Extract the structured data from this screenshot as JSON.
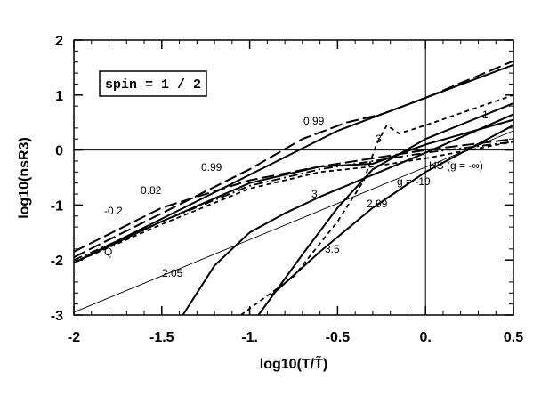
{
  "chart_data": {
    "type": "line",
    "xlabel": "log10(T/T̃)",
    "ylabel": "log10(nsR3)",
    "xlim": [
      -2,
      0.5
    ],
    "ylim": [
      -3,
      2
    ],
    "x_ticks": [
      "-2",
      "-1.5",
      "-1.",
      "-0.5",
      "0.",
      "0.5"
    ],
    "y_ticks": [
      "-3",
      "-2",
      "-1",
      "0",
      "1",
      "2"
    ],
    "box_label": "spin = 1 / 2",
    "reference_lines": {
      "y": 0,
      "x": 0
    },
    "series": [
      {
        "name": "1",
        "style": "solid",
        "x": [
          -2,
          -1.5,
          -1,
          -0.5,
          0,
          0.5
        ],
        "y": [
          -2.05,
          -1.25,
          -0.45,
          0.35,
          0.95,
          1.55
        ]
      },
      {
        "name": "0.99",
        "style": "long-dash",
        "x": [
          -2,
          -1.5,
          -1,
          -0.7,
          -0.45,
          -0.25,
          0,
          0.5
        ],
        "y": [
          -1.95,
          -1.15,
          -0.35,
          0.2,
          0.5,
          0.65,
          0.95,
          1.62
        ]
      },
      {
        "name": "0.82",
        "style": "long-dash",
        "x": [
          -2,
          -1.5,
          -1,
          -0.6,
          -0.3,
          0,
          0.5
        ],
        "y": [
          -1.85,
          -1.05,
          -0.55,
          -0.3,
          -0.15,
          0.0,
          0.2
        ]
      },
      {
        "name": "-0.2",
        "style": "dash-dot",
        "x": [
          -2,
          -1.5,
          -1,
          -0.6,
          -0.3,
          0,
          0.5
        ],
        "y": [
          -2.0,
          -1.3,
          -0.65,
          -0.35,
          -0.2,
          -0.05,
          0.15
        ]
      },
      {
        "name": "HS (g = -∞)",
        "style": "dashed",
        "x": [
          -2,
          -1.5,
          -1,
          -0.6,
          -0.3,
          0,
          0.5
        ],
        "y": [
          -2.05,
          -1.35,
          -0.7,
          -0.4,
          -0.3,
          -0.15,
          0.15
        ]
      },
      {
        "name": "g = -19",
        "style": "solid",
        "x": [
          -2,
          -1.5,
          -1,
          -0.6,
          -0.3,
          0,
          0.5
        ],
        "y": [
          -2.05,
          -1.3,
          -0.6,
          -0.3,
          -0.25,
          0.1,
          0.55
        ]
      },
      {
        "name": "3",
        "style": "dashed",
        "x": [
          -1.05,
          -0.75,
          -0.5,
          -0.35,
          -0.28,
          -0.22,
          -0.15,
          0.0,
          0.5
        ],
        "y": [
          -3.0,
          -2.3,
          -1.3,
          -0.55,
          0.1,
          0.45,
          0.3,
          0.45,
          1.0
        ]
      },
      {
        "name": "2.99",
        "style": "solid",
        "x": [
          -0.95,
          -0.7,
          -0.5,
          -0.3,
          0.0,
          0.5
        ],
        "y": [
          -3.0,
          -1.9,
          -1.05,
          -0.35,
          0.2,
          0.85
        ]
      },
      {
        "name": "3.5",
        "style": "solid",
        "x": [
          -0.88,
          -0.6,
          -0.3,
          0.0,
          0.5
        ],
        "y": [
          -2.65,
          -1.85,
          -1.05,
          -0.4,
          0.45
        ]
      },
      {
        "name": "2.05",
        "style": "solid",
        "x": [
          -1.38,
          -1.2,
          -1.0,
          -0.8,
          -0.6,
          -0.3,
          0.0,
          0.5
        ],
        "y": [
          -3.0,
          -2.1,
          -1.5,
          -1.15,
          -0.85,
          -0.45,
          -0.05,
          0.65
        ]
      },
      {
        "name": "Q",
        "style": "thin",
        "x": [
          -2,
          0.5
        ],
        "y": [
          -2.95,
          0.35
        ]
      }
    ]
  }
}
